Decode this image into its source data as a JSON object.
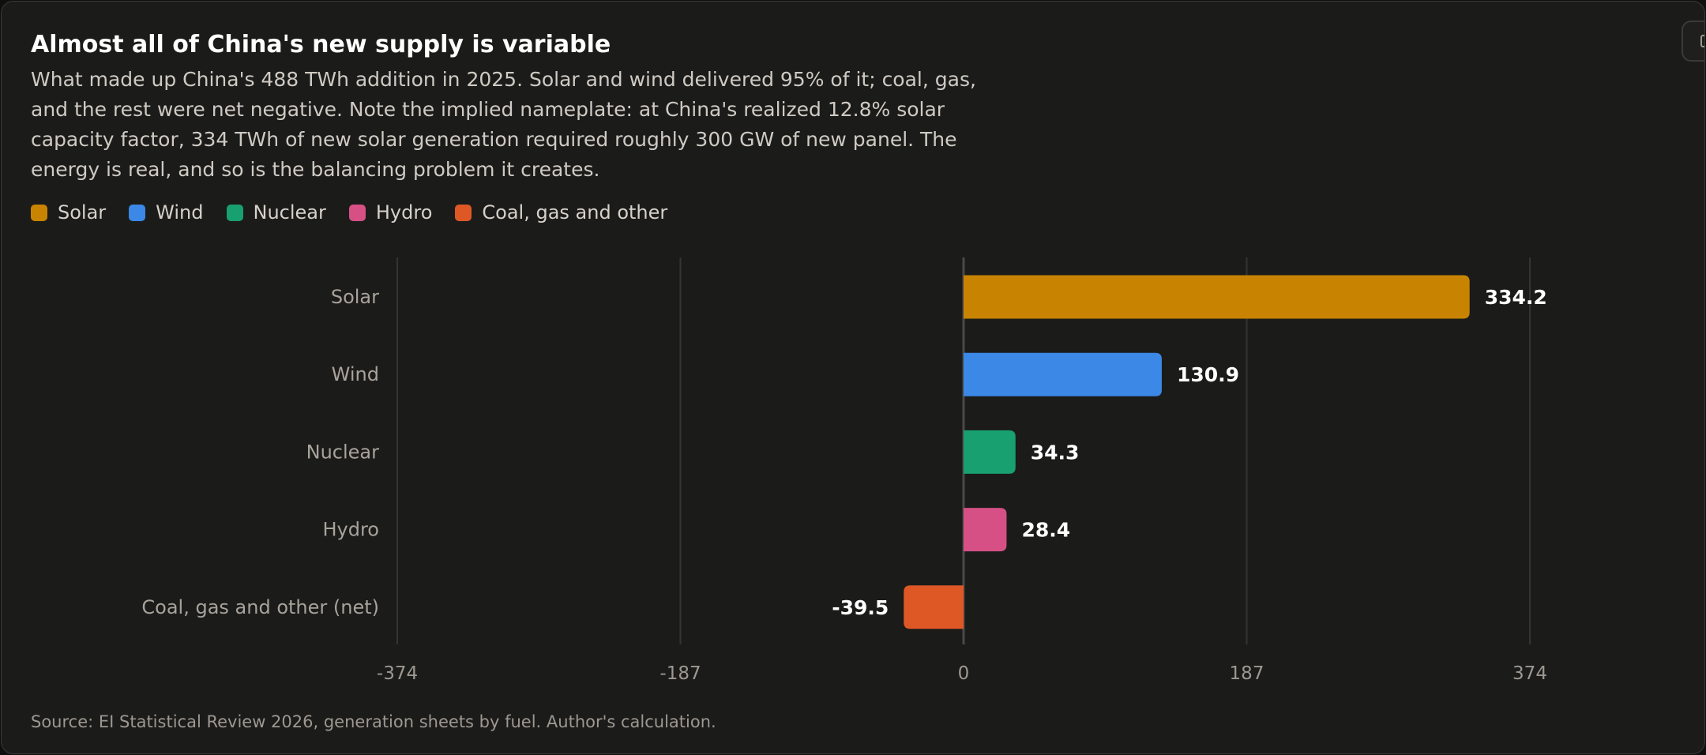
{
  "title": "Almost all of China's new supply is variable",
  "subtitle": "What made up China's 488 TWh addition in 2025. Solar and wind delivered 95% of it; coal, gas, and the rest were net negative. Note the implied nameplate: at China's realized 12.8% solar capacity factor, 334 TWh of new solar generation required roughly 300 GW of new panel. The energy is real, and so is the balancing problem it creates.",
  "legend": [
    {
      "label": "Solar",
      "color": "#c88400"
    },
    {
      "label": "Wind",
      "color": "#3b88e6"
    },
    {
      "label": "Nuclear",
      "color": "#18a070"
    },
    {
      "label": "Hydro",
      "color": "#d65086"
    },
    {
      "label": "Coal, gas and other",
      "color": "#de5826"
    }
  ],
  "source": "Source: EI Statistical Review 2026, generation sheets by fuel. Author's calculation.",
  "chart_data": {
    "type": "bar",
    "orientation": "horizontal",
    "categories": [
      "Solar",
      "Wind",
      "Nuclear",
      "Hydro",
      "Coal, gas and other (net)"
    ],
    "values": [
      334.2,
      130.9,
      34.3,
      28.4,
      -39.5
    ],
    "value_labels": [
      "334.2",
      "130.9",
      "34.3",
      "28.4",
      "-39.5"
    ],
    "colors": [
      "#c88400",
      "#3b88e6",
      "#18a070",
      "#d65086",
      "#de5826"
    ],
    "xlim": [
      -374,
      374
    ],
    "ticks": [
      -374,
      -187,
      0,
      187,
      374
    ],
    "tick_labels": [
      "-374",
      "-187",
      "0",
      "187",
      "374"
    ],
    "grid": true
  }
}
